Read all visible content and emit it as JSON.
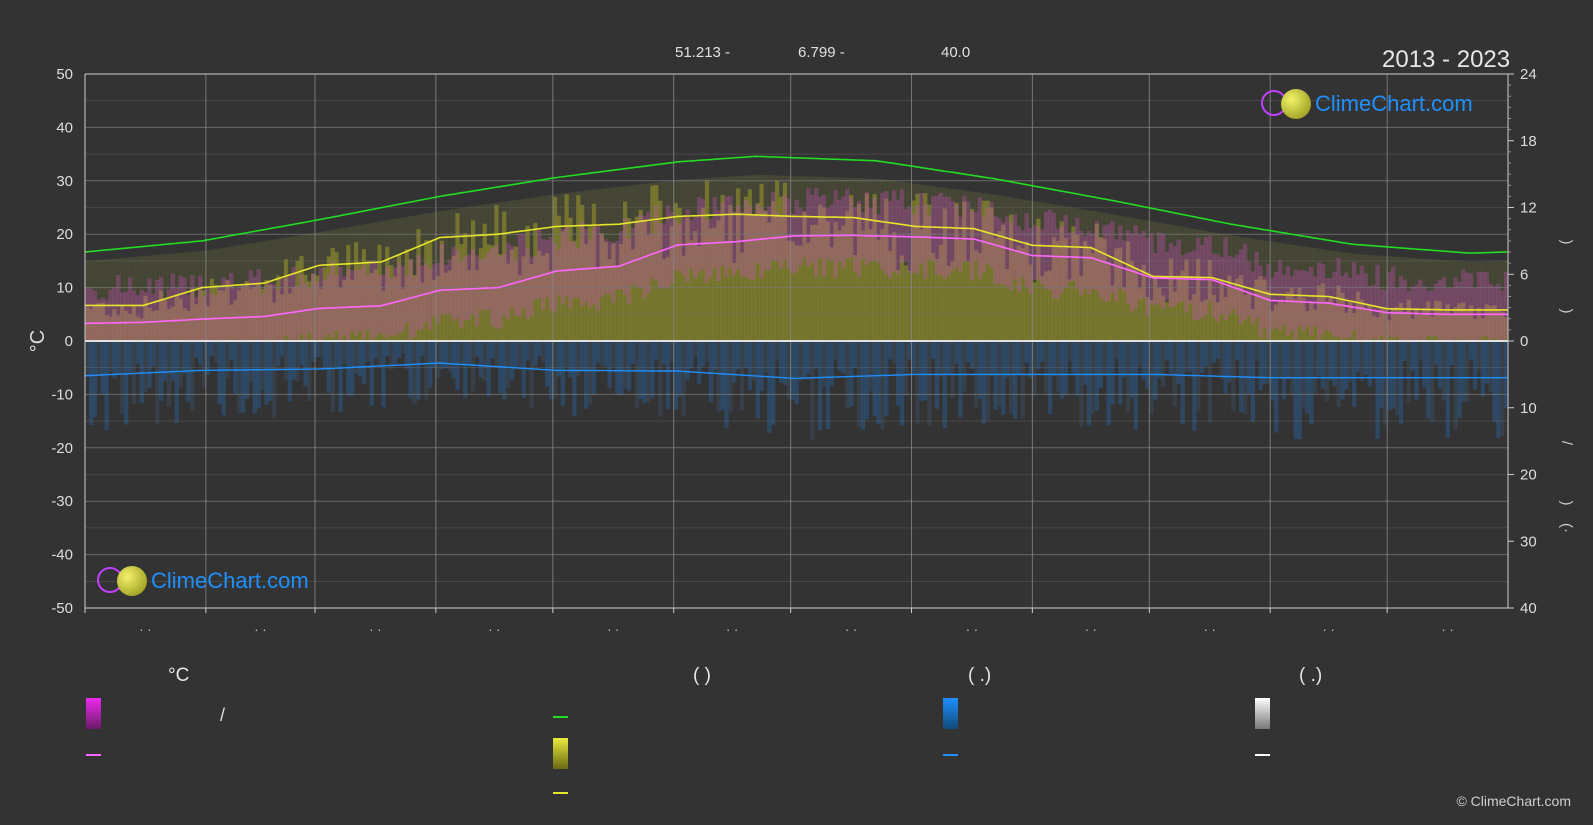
{
  "header": {
    "coordinates": "51.213 -",
    "longitude": "6.799 -",
    "elevation": "40.0",
    "period": "2013 - 2023"
  },
  "brand": {
    "logo_text": "ClimeChart.com",
    "copyright": "© ClimeChart.com"
  },
  "axes": {
    "left_unit": "°C",
    "left_ticks": [
      50,
      40,
      30,
      20,
      10,
      0,
      -10,
      -20,
      -30,
      -40,
      -50
    ],
    "right_top_ticks": [
      24,
      18,
      12,
      6,
      0
    ],
    "right_bottom_ticks": [
      10,
      20,
      30,
      40
    ],
    "right_labels": [
      ")",
      ")",
      "/",
      ")",
      "(·"
    ],
    "month_labels": [
      "· ·",
      "· ·",
      "· ·",
      "· ·",
      "· ·",
      "· ·",
      "· ·",
      "· ·",
      "· ·",
      "· ·",
      "· ·",
      "· ·"
    ]
  },
  "legend": {
    "col1_header": "°C",
    "col2_header": "(          )",
    "col3_header": "(    .)",
    "col4_header": "(    .)",
    "col1_range_label": "/"
  },
  "colors": {
    "background": "#333333",
    "daylight": "#22dd22",
    "sunshine": "#e6e62a",
    "temp_mean": "#ff66ff",
    "precip": "#1e90ff",
    "grid": "#777777",
    "logo_text": "#1e90ff"
  },
  "chart_data": {
    "type": "line",
    "x_unit": "day_of_year",
    "ylim_left": [
      -50,
      50
    ],
    "ylim_right_hours": [
      0,
      24
    ],
    "ylim_right_precip": [
      0,
      40
    ],
    "grid": true,
    "series": [
      {
        "key": "daylight",
        "axis": "hours",
        "x": [
          0,
          30,
          60,
          91,
          121,
          152,
          172,
          203,
          233,
          264,
          294,
          325,
          355,
          365
        ],
        "values": [
          8.0,
          9.0,
          10.9,
          13.0,
          14.7,
          16.1,
          16.6,
          16.2,
          14.6,
          12.6,
          10.5,
          8.7,
          7.9,
          8.0
        ]
      },
      {
        "key": "sunshine",
        "axis": "hours",
        "x": [
          0,
          15,
          30,
          46,
          60,
          76,
          91,
          106,
          121,
          137,
          152,
          167,
          182,
          197,
          213,
          228,
          243,
          258,
          274,
          289,
          304,
          319,
          334,
          349,
          365
        ],
        "values": [
          3.2,
          3.2,
          4.8,
          5.2,
          6.8,
          7.1,
          9.3,
          9.6,
          10.3,
          10.5,
          11.2,
          11.4,
          11.2,
          11.1,
          10.3,
          10.1,
          8.6,
          8.4,
          5.8,
          5.7,
          4.2,
          4.0,
          2.9,
          2.8,
          2.8
        ]
      },
      {
        "key": "temp_mean",
        "axis": "celsius",
        "x": [
          0,
          15,
          30,
          46,
          60,
          76,
          91,
          106,
          121,
          137,
          152,
          167,
          182,
          197,
          213,
          228,
          243,
          258,
          274,
          289,
          304,
          319,
          334,
          349,
          365
        ],
        "values": [
          3.3,
          3.5,
          4.1,
          4.6,
          6.1,
          6.6,
          9.5,
          10.0,
          13.1,
          14.0,
          18.0,
          18.6,
          19.7,
          19.8,
          19.5,
          19.1,
          16.0,
          15.6,
          11.8,
          11.5,
          7.6,
          7.1,
          5.3,
          5.0,
          5.0
        ]
      },
      {
        "key": "precip_mean",
        "axis": "precip_mm",
        "x": [
          0,
          30,
          60,
          91,
          121,
          152,
          182,
          213,
          243,
          274,
          304,
          334,
          365
        ],
        "values": [
          5.2,
          4.4,
          4.2,
          3.3,
          4.4,
          4.5,
          5.6,
          5.0,
          5.0,
          5.0,
          5.5,
          5.5,
          5.5
        ]
      }
    ]
  }
}
